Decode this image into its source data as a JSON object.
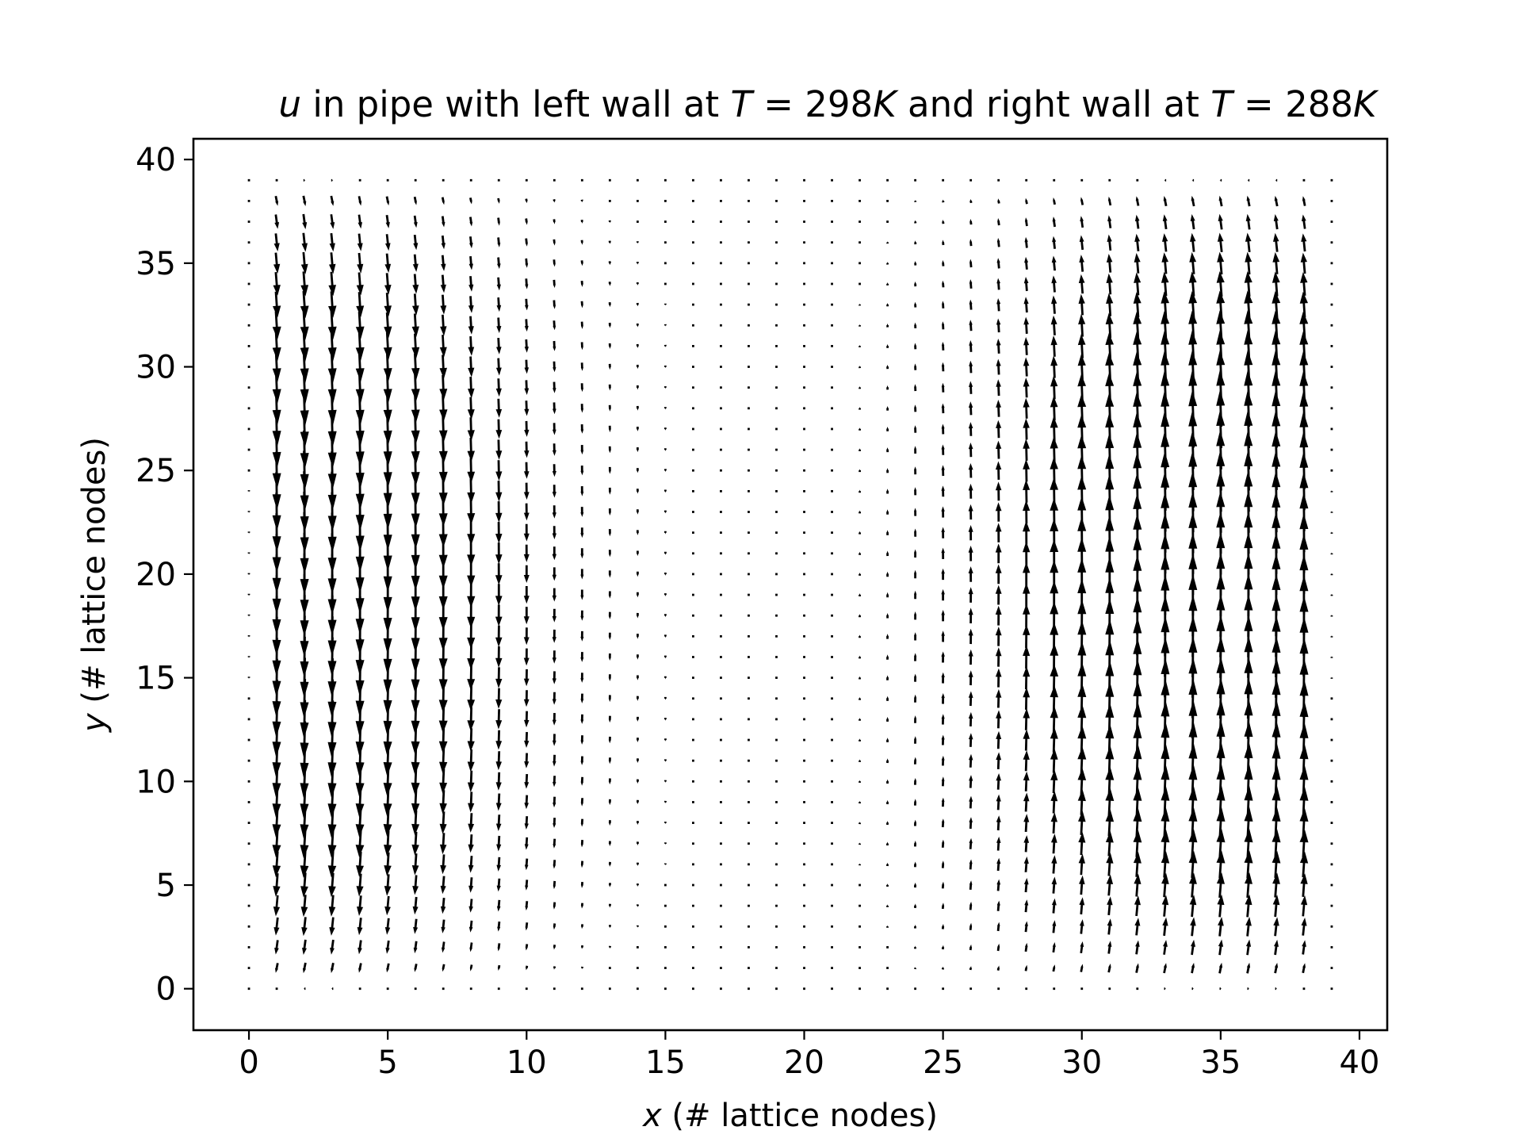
{
  "chart_data": {
    "type": "quiver",
    "title": {
      "var": "u",
      "part1": " in pipe with left wall at ",
      "t1_sym": "T",
      "t1_val": " = 298",
      "unit1": "K",
      "part2": " and right wall at ",
      "t2_sym": "T",
      "t2_val": " = 288",
      "unit2": "K"
    },
    "xlabel": {
      "var": "x",
      "text": " (# lattice nodes)"
    },
    "ylabel": {
      "var": "y",
      "text": " (# lattice nodes)"
    },
    "xlim": [
      -2,
      41
    ],
    "ylim": [
      -2,
      41
    ],
    "xticks": [
      0,
      5,
      10,
      15,
      20,
      25,
      30,
      35,
      40
    ],
    "yticks": [
      0,
      5,
      10,
      15,
      20,
      25,
      30,
      35,
      40
    ],
    "tick_labels_x": [
      "0",
      "5",
      "10",
      "15",
      "20",
      "25",
      "30",
      "35",
      "40"
    ],
    "tick_labels_y": [
      "0",
      "5",
      "10",
      "15",
      "20",
      "25",
      "30",
      "35",
      "40"
    ],
    "grid_x": [
      0,
      39
    ],
    "grid_y": [
      0,
      39
    ],
    "field_description": "Vertical velocity field: downward flow near the warm left wall (x≈1–14), near-zero flow around x≈17–22, upward flow near the cold right wall (x≈24–38); magnitude peaks in mid-height, tapering to zero at the top and bottom rows and at x=0 and x=39.",
    "column_peak_length_y_units": {
      "x": [
        0,
        1,
        2,
        3,
        4,
        5,
        6,
        7,
        8,
        9,
        10,
        11,
        12,
        13,
        14,
        15,
        16,
        17,
        18,
        19,
        20,
        21,
        22,
        23,
        24,
        25,
        26,
        27,
        28,
        29,
        30,
        31,
        32,
        33,
        34,
        35,
        36,
        37,
        38,
        39
      ],
      "v": [
        -0.1,
        -1.9,
        -2.0,
        -1.95,
        -1.85,
        -1.75,
        -1.6,
        -1.45,
        -1.25,
        -1.05,
        -0.85,
        -0.65,
        -0.5,
        -0.35,
        -0.25,
        -0.15,
        -0.08,
        -0.03,
        0.0,
        0.02,
        0.05,
        0.08,
        0.15,
        0.25,
        0.4,
        0.55,
        0.75,
        0.95,
        1.15,
        1.35,
        1.55,
        1.7,
        1.85,
        1.95,
        2.0,
        2.05,
        2.05,
        2.0,
        1.9,
        0.1
      ]
    },
    "arrow_color": "#000000"
  }
}
